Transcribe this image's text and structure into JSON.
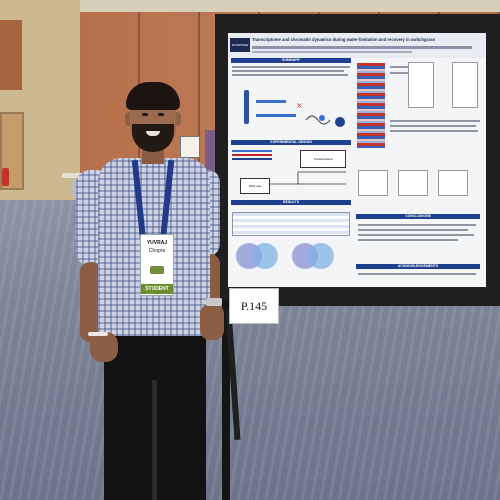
{
  "scene": {
    "description_colors": {
      "board": "#1f1f1f",
      "poster_accent": "#1f3f8f",
      "wood_wall": "#b7704c",
      "carpet": "#7b8396",
      "lanyard": "#233a88",
      "badge_strip": "#6c8f2e"
    }
  },
  "poster": {
    "logo_text": "RIVERSIDE",
    "title": "Transcriptome and chromatin dynamics during water-limitation and recovery in switchgrass",
    "section_summary": "SUMMARY",
    "section_experimental": "EXPERIMENTAL DESIGN",
    "section_results": "RESULTS",
    "section_conclusions": "CONCLUSIONS",
    "section_acknowledgements": "ACKNOWLEDGEMENTS",
    "diagram_box_1": "RNA-seq",
    "diagram_box_2": "Transcriptome"
  },
  "sign": {
    "label": "P.145"
  },
  "badge": {
    "name": "YUVRAJ",
    "surname": "Chopra",
    "role": "STUDENT"
  }
}
